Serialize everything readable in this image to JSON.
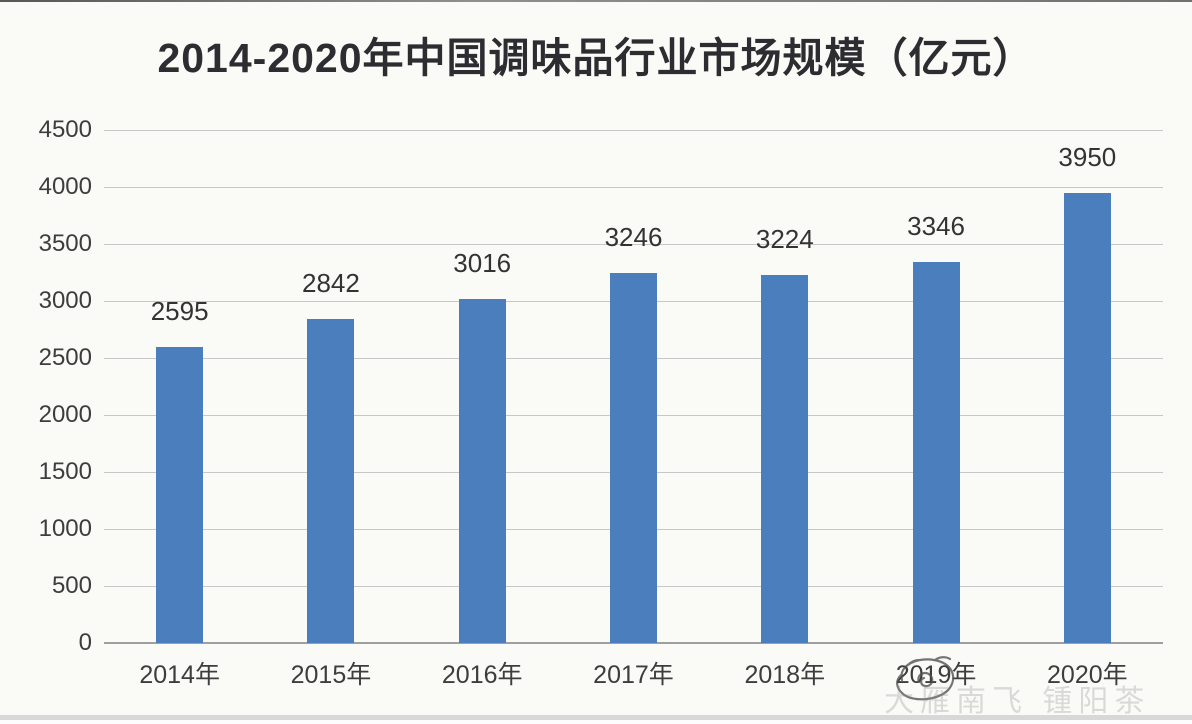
{
  "title": "2014-2020年中国调味品行业市场规模（亿元）",
  "chart_data": {
    "type": "bar",
    "title": "2014-2020年中国调味品行业市场规模（亿元）",
    "categories": [
      "2014年",
      "2015年",
      "2016年",
      "2017年",
      "2018年",
      "2019年",
      "2020年"
    ],
    "values": [
      2595,
      2842,
      3016,
      3246,
      3224,
      3346,
      3950
    ],
    "series_name": "市场规模（亿元）",
    "xlabel": "",
    "ylabel": "",
    "ylim": [
      0,
      4500
    ],
    "yticks": [
      0,
      500,
      1000,
      1500,
      2000,
      2500,
      3000,
      3500,
      4000,
      4500
    ],
    "grid": true,
    "legend": false,
    "data_labels": true,
    "bar_color": "#4b7ebc",
    "gridline_color": "#c7c7c7",
    "baseline_color": "#9f9f9f"
  },
  "watermark": {
    "text": "大雁南飞 锺阳茶"
  },
  "colors": {
    "background": "#fafaf7",
    "title_text": "#2c2c31",
    "axis_text": "#3d3d3d",
    "data_label_text": "#333333",
    "bottom_strip": "#d8d8d8"
  }
}
